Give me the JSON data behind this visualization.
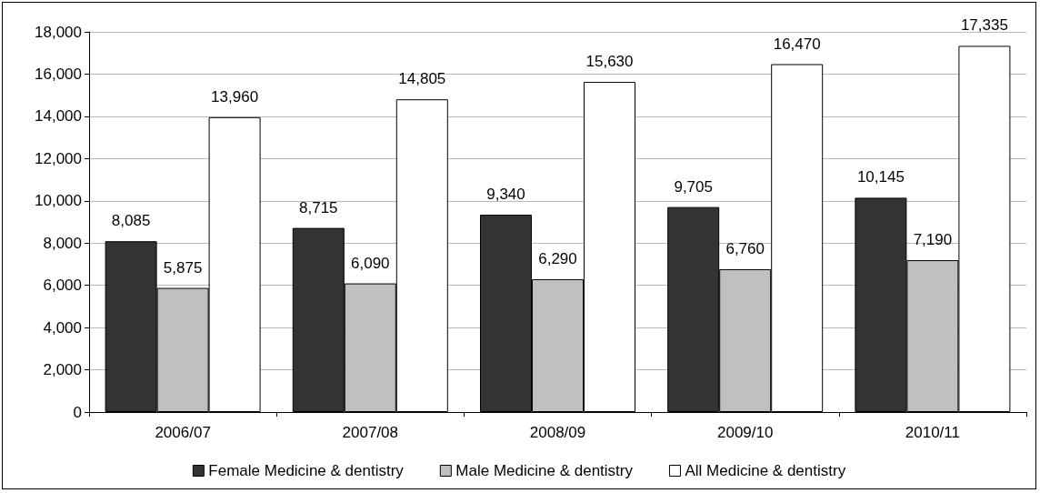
{
  "chart_data": {
    "type": "bar",
    "categories": [
      "2006/07",
      "2007/08",
      "2008/09",
      "2009/10",
      "2010/11"
    ],
    "series": [
      {
        "name": "Female Medicine & dentistry",
        "color": "#333333",
        "values": [
          8085,
          8715,
          9340,
          9705,
          10145
        ],
        "value_labels": [
          "8,085",
          "8,715",
          "9,340",
          "9,705",
          "10,145"
        ]
      },
      {
        "name": "Male Medicine & dentistry",
        "color": "#c0c0c0",
        "values": [
          5875,
          6090,
          6290,
          6760,
          7190
        ],
        "value_labels": [
          "5,875",
          "6,090",
          "6,290",
          "6,760",
          "7,190"
        ]
      },
      {
        "name": "All Medicine & dentistry",
        "color": "#ffffff",
        "values": [
          13960,
          14805,
          15630,
          16470,
          17335
        ],
        "value_labels": [
          "13,960",
          "14,805",
          "15,630",
          "16,470",
          "17,335"
        ]
      }
    ],
    "ylim": [
      0,
      18000
    ],
    "yticks": [
      0,
      {
        "value": 2000,
        "label": "2,000"
      },
      {
        "value": 4000,
        "label": "4,000"
      },
      {
        "value": 6000,
        "label": "6,000"
      },
      {
        "value": 8000,
        "label": "8,000"
      },
      {
        "value": 10000,
        "label": "10,000"
      },
      {
        "value": 12000,
        "label": "12,000"
      },
      {
        "value": 14000,
        "label": "14,000"
      },
      {
        "value": 16000,
        "label": "16,000"
      },
      {
        "value": 18000,
        "label": "18,000"
      }
    ],
    "grid": "y",
    "legend": "bottom"
  }
}
